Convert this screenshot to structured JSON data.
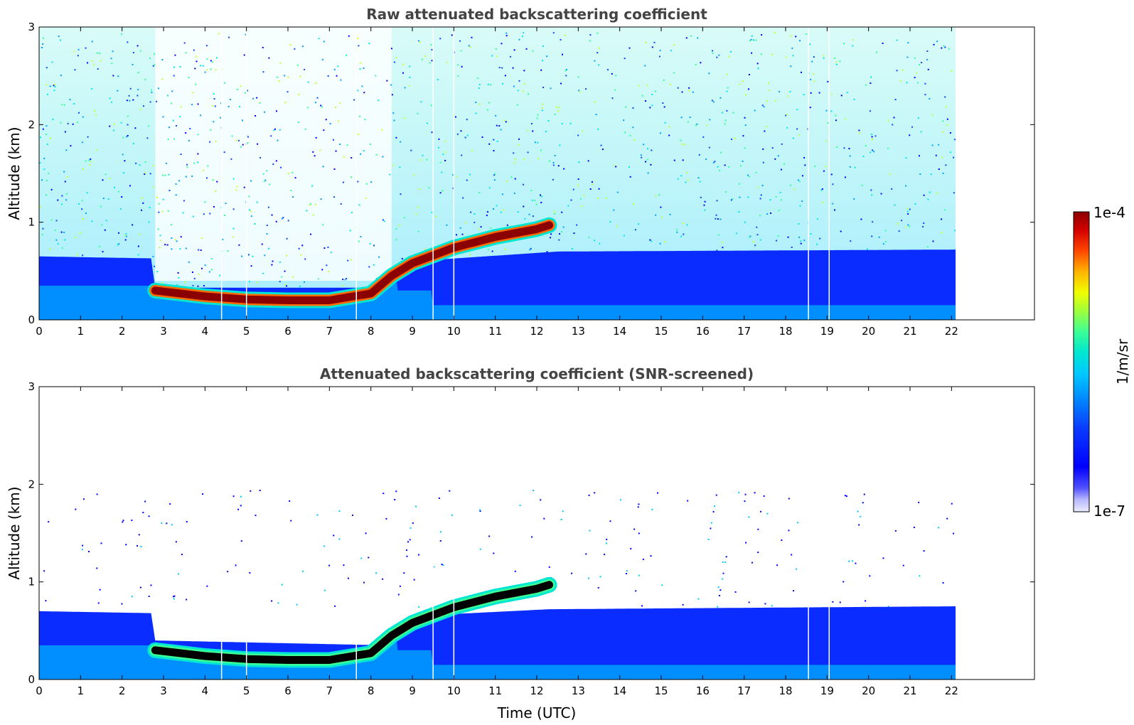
{
  "chart_data": [
    {
      "type": "heatmap",
      "title": "Raw attenuated backscattering coefficient",
      "xlabel": "",
      "ylabel": "Altitude (km)",
      "xlim": [
        0,
        24
      ],
      "ylim": [
        0,
        3
      ],
      "xticks": [
        "0",
        "1",
        "2",
        "3",
        "4",
        "5",
        "6",
        "7",
        "8",
        "9",
        "10",
        "11",
        "12",
        "13",
        "14",
        "15",
        "16",
        "17",
        "18",
        "19",
        "20",
        "21",
        "22"
      ],
      "yticks": [
        "0",
        "1",
        "2",
        "3"
      ],
      "data_end_time": 22.1,
      "features": {
        "cloud_base_layer": [
          {
            "time": 2.8,
            "altitude": 0.3
          },
          {
            "time": 4,
            "altitude": 0.24
          },
          {
            "time": 5,
            "altitude": 0.21
          },
          {
            "time": 6,
            "altitude": 0.2
          },
          {
            "time": 7,
            "altitude": 0.2
          },
          {
            "time": 8,
            "altitude": 0.27
          },
          {
            "time": 8.5,
            "altitude": 0.45
          },
          {
            "time": 9,
            "altitude": 0.58
          },
          {
            "time": 10,
            "altitude": 0.74
          },
          {
            "time": 11,
            "altitude": 0.85
          },
          {
            "time": 12,
            "altitude": 0.93
          },
          {
            "time": 12.3,
            "altitude": 0.97
          }
        ],
        "boundary_layer_top": [
          {
            "time": 0,
            "altitude": 0.65
          },
          {
            "time": 2.7,
            "altitude": 0.63
          },
          {
            "time": 2.8,
            "altitude": 0.33
          },
          {
            "time": 8.4,
            "altitude": 0.33
          },
          {
            "time": 9,
            "altitude": 0.6
          },
          {
            "time": 12.5,
            "altitude": 0.7
          },
          {
            "time": 22.1,
            "altitude": 0.72
          }
        ],
        "data_gaps": [
          4.4,
          5.0,
          7.65,
          9.5,
          10.0,
          18.55,
          19.05
        ]
      }
    },
    {
      "type": "heatmap",
      "title": "Attenuated backscattering coefficient (SNR-screened)",
      "xlabel": "Time (UTC)",
      "ylabel": "Altitude (km)",
      "xlim": [
        0,
        24
      ],
      "ylim": [
        0,
        3
      ],
      "xticks": [
        "0",
        "1",
        "2",
        "3",
        "4",
        "5",
        "6",
        "7",
        "8",
        "9",
        "10",
        "11",
        "12",
        "13",
        "14",
        "15",
        "16",
        "17",
        "18",
        "19",
        "20",
        "21",
        "22"
      ],
      "yticks": [
        "0",
        "1",
        "2",
        "3"
      ],
      "data_end_time": 22.1,
      "features": {
        "cloud_base_layer": [
          {
            "time": 2.8,
            "altitude": 0.3
          },
          {
            "time": 4,
            "altitude": 0.24
          },
          {
            "time": 5,
            "altitude": 0.21
          },
          {
            "time": 6,
            "altitude": 0.2
          },
          {
            "time": 7,
            "altitude": 0.2
          },
          {
            "time": 8,
            "altitude": 0.27
          },
          {
            "time": 8.5,
            "altitude": 0.45
          },
          {
            "time": 9,
            "altitude": 0.58
          },
          {
            "time": 10,
            "altitude": 0.74
          },
          {
            "time": 11,
            "altitude": 0.85
          },
          {
            "time": 12,
            "altitude": 0.93
          },
          {
            "time": 12.3,
            "altitude": 0.97
          }
        ],
        "screened_layer_top": [
          {
            "time": 0,
            "altitude": 0.7
          },
          {
            "time": 2.7,
            "altitude": 0.68
          },
          {
            "time": 2.8,
            "altitude": 0.4
          },
          {
            "time": 8.4,
            "altitude": 0.35
          },
          {
            "time": 9,
            "altitude": 0.65
          },
          {
            "time": 12.3,
            "altitude": 0.72
          },
          {
            "time": 22.1,
            "altitude": 0.75
          }
        ],
        "data_gaps": [
          4.4,
          5.0,
          7.65,
          9.5,
          10.0,
          18.55,
          19.05
        ]
      }
    }
  ],
  "colorbar": {
    "label": "1/m/sr",
    "max_label": "1e-4",
    "min_label": "1e-7",
    "range": [
      1e-07,
      0.0001
    ],
    "scale": "log",
    "colormap": [
      "#ffffff",
      "#d0d0ff",
      "#3c3cff",
      "#0000ff",
      "#0a46ff",
      "#00a0ff",
      "#00e6e6",
      "#32ff96",
      "#c8ff32",
      "#ffff00",
      "#ffa000",
      "#ff3200",
      "#c80000",
      "#8b0000"
    ]
  }
}
